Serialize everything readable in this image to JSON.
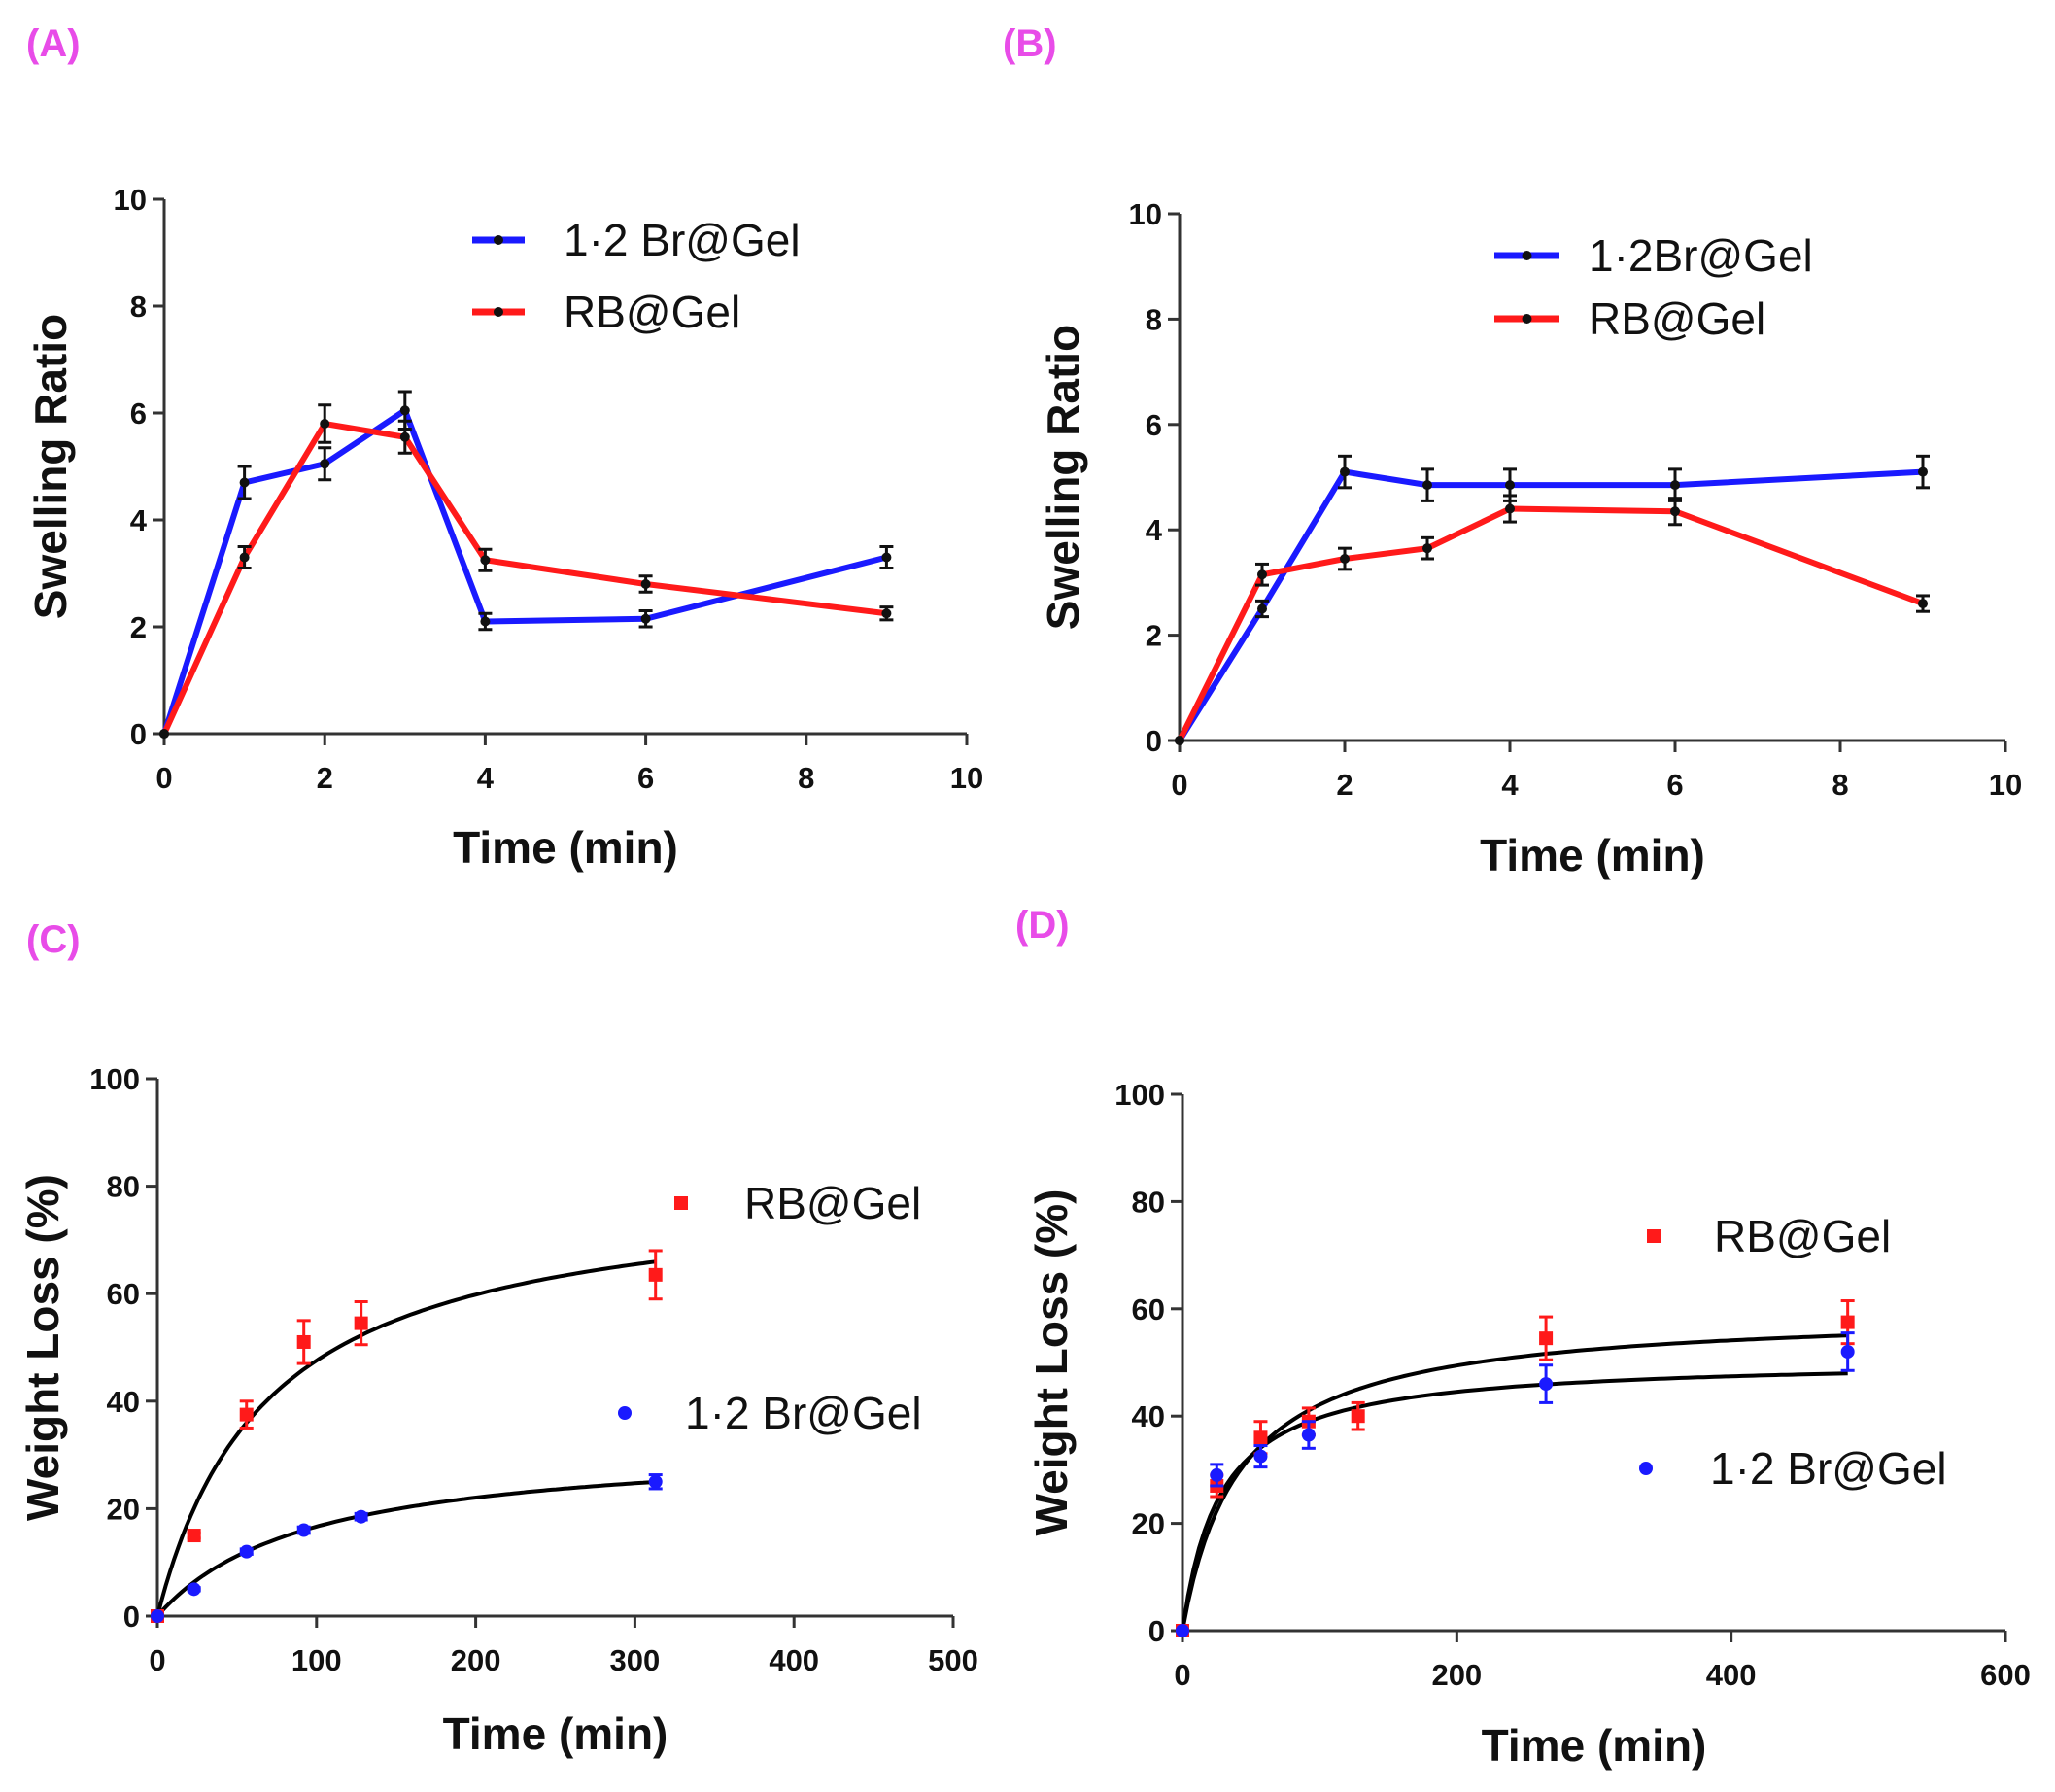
{
  "colors": {
    "blue": "#1a1aff",
    "red": "#ff1a1a",
    "fit": "#000000",
    "panel_label": "#e84ce8"
  },
  "chart_data": [
    {
      "panel": "(A)",
      "type": "line",
      "xlabel": "Time (min)",
      "ylabel": "Swelling Ratio",
      "xlim": [
        0,
        10
      ],
      "ylim": [
        0,
        10
      ],
      "xticks": [
        0,
        2,
        4,
        6,
        8,
        10
      ],
      "yticks": [
        0,
        2,
        4,
        6,
        8,
        10
      ],
      "legend": "top-right",
      "series": [
        {
          "name": "1·2 Br@Gel",
          "color": "blue",
          "x": [
            0,
            1,
            2,
            3,
            4,
            6,
            9
          ],
          "y": [
            0,
            4.7,
            5.05,
            6.05,
            2.1,
            2.15,
            3.3
          ],
          "err": [
            0,
            0.3,
            0.3,
            0.35,
            0.15,
            0.15,
            0.2
          ]
        },
        {
          "name": "RB@Gel",
          "color": "red",
          "x": [
            0,
            1,
            2,
            3,
            4,
            6,
            9
          ],
          "y": [
            0,
            3.3,
            5.8,
            5.55,
            3.25,
            2.8,
            2.25
          ],
          "err": [
            0,
            0.2,
            0.35,
            0.3,
            0.2,
            0.15,
            0.12
          ]
        }
      ]
    },
    {
      "panel": "(B)",
      "type": "line",
      "xlabel": "Time (min)",
      "ylabel": "Swelling Ratio",
      "xlim": [
        0,
        10
      ],
      "ylim": [
        0,
        10
      ],
      "xticks": [
        0,
        2,
        4,
        6,
        8,
        10
      ],
      "yticks": [
        0,
        2,
        4,
        6,
        8,
        10
      ],
      "legend": "top-right",
      "series": [
        {
          "name": "1·2Br@Gel",
          "color": "blue",
          "x": [
            0,
            1,
            2,
            3,
            4,
            6,
            9
          ],
          "y": [
            0,
            2.5,
            5.1,
            4.85,
            4.85,
            4.85,
            5.1
          ],
          "err": [
            0,
            0.15,
            0.3,
            0.3,
            0.3,
            0.3,
            0.3
          ]
        },
        {
          "name": "RB@Gel",
          "color": "red",
          "x": [
            0,
            1,
            2,
            3,
            4,
            6,
            9
          ],
          "y": [
            0,
            3.15,
            3.45,
            3.65,
            4.4,
            4.35,
            2.6
          ],
          "err": [
            0,
            0.2,
            0.2,
            0.2,
            0.25,
            0.25,
            0.15
          ]
        }
      ]
    },
    {
      "panel": "(C)",
      "type": "scatter",
      "xlabel": "Time (min)",
      "ylabel": "Weight Loss (%)",
      "xlim": [
        0,
        500
      ],
      "ylim": [
        0,
        100
      ],
      "xticks": [
        0,
        100,
        200,
        300,
        400,
        500
      ],
      "yticks": [
        0,
        20,
        40,
        60,
        80,
        100
      ],
      "legend": "right",
      "fit_curve": true,
      "series": [
        {
          "name": "RB@Gel",
          "color": "red",
          "marker": "square",
          "x": [
            0,
            23,
            56,
            92,
            128,
            313
          ],
          "y": [
            0,
            15,
            37.5,
            51,
            54.5,
            63.5
          ],
          "err": [
            0,
            0.5,
            2.5,
            4,
            4,
            4.5
          ]
        },
        {
          "name": "1·2 Br@Gel",
          "color": "blue",
          "marker": "circle",
          "x": [
            0,
            23,
            56,
            92,
            128,
            313
          ],
          "y": [
            0,
            5,
            12,
            16,
            18.5,
            25
          ],
          "err": [
            0,
            0.3,
            0.5,
            0.6,
            0.6,
            1.3
          ]
        }
      ]
    },
    {
      "panel": "(D)",
      "type": "scatter",
      "xlabel": "Time (min)",
      "ylabel": "Weight Loss (%)",
      "xlim": [
        0,
        600
      ],
      "ylim": [
        0,
        100
      ],
      "xticks": [
        0,
        200,
        400,
        600
      ],
      "yticks": [
        0,
        20,
        40,
        60,
        80,
        100
      ],
      "legend": "right",
      "fit_curve": true,
      "series": [
        {
          "name": "RB@Gel",
          "color": "red",
          "marker": "square",
          "x": [
            0,
            25,
            57,
            92,
            128,
            265,
            485
          ],
          "y": [
            0,
            27,
            36,
            39,
            40,
            54.5,
            57.5
          ],
          "err": [
            0,
            2,
            3,
            2.5,
            2.5,
            4,
            4
          ]
        },
        {
          "name": "1·2 Br@Gel",
          "color": "blue",
          "marker": "circle",
          "x": [
            0,
            25,
            57,
            92,
            265,
            485
          ],
          "y": [
            0,
            29,
            32.5,
            36.5,
            46,
            52
          ],
          "err": [
            0,
            2,
            2,
            2.5,
            3.5,
            3.5
          ]
        }
      ]
    }
  ]
}
